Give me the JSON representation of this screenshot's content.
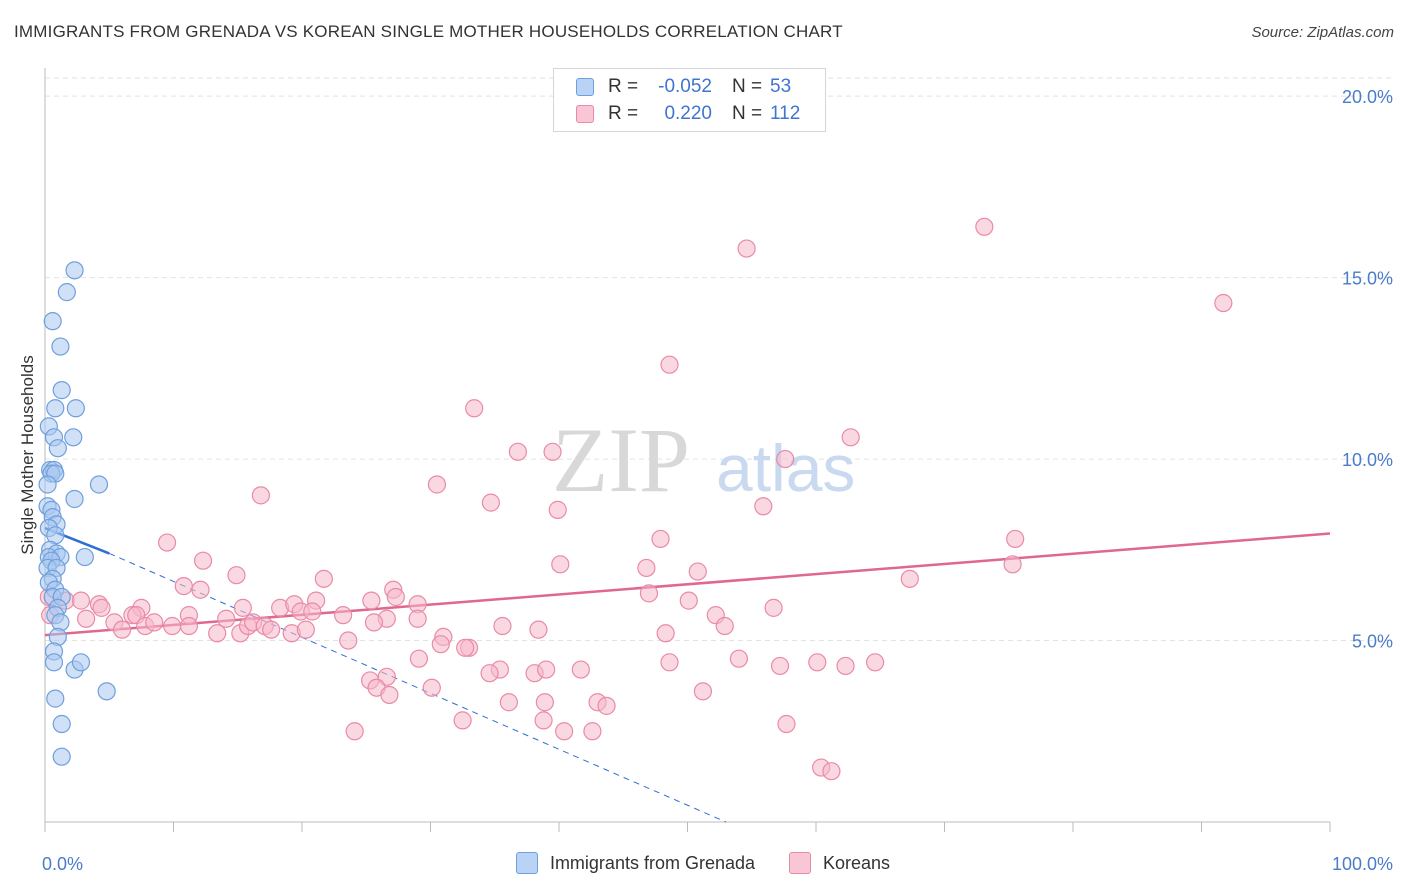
{
  "header": {
    "title": "IMMIGRANTS FROM GRENADA VS KOREAN SINGLE MOTHER HOUSEHOLDS CORRELATION CHART",
    "source": "Source: ZipAtlas.com"
  },
  "watermark": {
    "zip": "ZIP",
    "atlas": "atlas"
  },
  "legend": {
    "rows": [
      {
        "r_label": "R =",
        "r_value": "-0.052",
        "n_label": "N =",
        "n_value": "53"
      },
      {
        "r_label": "R =",
        "r_value": "0.220",
        "n_label": "N =",
        "n_value": "112"
      }
    ]
  },
  "colors": {
    "blue_fill": "#a9c8f0",
    "blue_stroke": "#6f9fdc",
    "blue_line": "#2f6fd0",
    "pink_fill": "#f6b8cb",
    "pink_stroke": "#e98aa8",
    "pink_line": "#e0678f",
    "grid": "#e2e2e2",
    "tick_text": "#4a7cc9"
  },
  "chart_data": {
    "type": "scatter",
    "title": "IMMIGRANTS FROM GRENADA VS KOREAN SINGLE MOTHER HOUSEHOLDS CORRELATION CHART",
    "xlabel": "",
    "ylabel": "Single Mother Households",
    "xlim": [
      0,
      100
    ],
    "ylim": [
      0,
      20.5
    ],
    "x_tick_labels": [
      "0.0%",
      "100.0%"
    ],
    "y_ticks": [
      5,
      10,
      15,
      20
    ],
    "y_tick_labels": [
      "5.0%",
      "10.0%",
      "15.0%",
      "20.0%"
    ],
    "grid": true,
    "series": [
      {
        "name": "Immigrants from Grenada",
        "color": "blue",
        "points": [
          [
            2.3,
            15.2
          ],
          [
            1.7,
            14.6
          ],
          [
            0.6,
            13.8
          ],
          [
            1.2,
            13.1
          ],
          [
            1.3,
            11.9
          ],
          [
            0.8,
            11.4
          ],
          [
            2.4,
            11.4
          ],
          [
            0.3,
            10.9
          ],
          [
            0.7,
            10.6
          ],
          [
            2.2,
            10.6
          ],
          [
            1.0,
            10.3
          ],
          [
            0.4,
            9.7
          ],
          [
            0.7,
            9.7
          ],
          [
            0.5,
            9.6
          ],
          [
            0.8,
            9.6
          ],
          [
            0.2,
            9.3
          ],
          [
            4.2,
            9.3
          ],
          [
            2.3,
            8.9
          ],
          [
            0.2,
            8.7
          ],
          [
            0.5,
            8.6
          ],
          [
            0.6,
            8.4
          ],
          [
            0.9,
            8.2
          ],
          [
            0.3,
            8.1
          ],
          [
            0.8,
            7.9
          ],
          [
            0.4,
            7.5
          ],
          [
            0.9,
            7.4
          ],
          [
            0.3,
            7.3
          ],
          [
            1.2,
            7.3
          ],
          [
            3.1,
            7.3
          ],
          [
            0.5,
            7.2
          ],
          [
            0.2,
            7.0
          ],
          [
            0.9,
            7.0
          ],
          [
            0.6,
            6.7
          ],
          [
            0.3,
            6.6
          ],
          [
            0.8,
            6.4
          ],
          [
            0.6,
            6.2
          ],
          [
            1.3,
            6.2
          ],
          [
            1.0,
            5.9
          ],
          [
            0.8,
            5.7
          ],
          [
            1.2,
            5.5
          ],
          [
            1.0,
            5.1
          ],
          [
            0.7,
            4.7
          ],
          [
            0.7,
            4.4
          ],
          [
            2.3,
            4.2
          ],
          [
            2.8,
            4.4
          ],
          [
            0.8,
            3.4
          ],
          [
            4.8,
            3.6
          ],
          [
            1.3,
            2.7
          ],
          [
            1.3,
            1.8
          ]
        ]
      },
      {
        "name": "Koreans",
        "color": "pink",
        "points": [
          [
            73.1,
            16.4
          ],
          [
            54.6,
            15.8
          ],
          [
            91.7,
            14.3
          ],
          [
            48.6,
            12.6
          ],
          [
            33.4,
            11.4
          ],
          [
            62.7,
            10.6
          ],
          [
            39.5,
            10.2
          ],
          [
            36.8,
            10.2
          ],
          [
            57.6,
            10.0
          ],
          [
            30.5,
            9.3
          ],
          [
            16.8,
            9.0
          ],
          [
            34.7,
            8.8
          ],
          [
            39.9,
            8.6
          ],
          [
            55.9,
            8.7
          ],
          [
            47.9,
            7.8
          ],
          [
            75.5,
            7.8
          ],
          [
            9.5,
            7.7
          ],
          [
            12.3,
            7.2
          ],
          [
            40.1,
            7.1
          ],
          [
            46.8,
            7.0
          ],
          [
            50.8,
            6.9
          ],
          [
            75.3,
            7.1
          ],
          [
            14.9,
            6.8
          ],
          [
            21.7,
            6.7
          ],
          [
            67.3,
            6.7
          ],
          [
            10.8,
            6.5
          ],
          [
            12.1,
            6.4
          ],
          [
            27.1,
            6.4
          ],
          [
            47.0,
            6.3
          ],
          [
            27.3,
            6.2
          ],
          [
            0.3,
            6.2
          ],
          [
            1.6,
            6.1
          ],
          [
            2.8,
            6.1
          ],
          [
            4.2,
            6.0
          ],
          [
            4.4,
            5.9
          ],
          [
            7.5,
            5.9
          ],
          [
            15.4,
            5.9
          ],
          [
            18.3,
            5.9
          ],
          [
            19.4,
            6.0
          ],
          [
            21.1,
            6.1
          ],
          [
            25.4,
            6.1
          ],
          [
            29.0,
            6.0
          ],
          [
            50.1,
            6.1
          ],
          [
            56.7,
            5.9
          ],
          [
            0.4,
            5.7
          ],
          [
            3.2,
            5.6
          ],
          [
            6.8,
            5.7
          ],
          [
            7.1,
            5.7
          ],
          [
            11.2,
            5.7
          ],
          [
            14.1,
            5.6
          ],
          [
            19.9,
            5.8
          ],
          [
            20.8,
            5.8
          ],
          [
            23.2,
            5.7
          ],
          [
            26.6,
            5.6
          ],
          [
            29.0,
            5.6
          ],
          [
            52.2,
            5.7
          ],
          [
            5.4,
            5.5
          ],
          [
            6.0,
            5.3
          ],
          [
            7.8,
            5.4
          ],
          [
            8.5,
            5.5
          ],
          [
            9.9,
            5.4
          ],
          [
            11.2,
            5.4
          ],
          [
            13.4,
            5.2
          ],
          [
            15.2,
            5.2
          ],
          [
            15.8,
            5.4
          ],
          [
            16.2,
            5.5
          ],
          [
            17.1,
            5.4
          ],
          [
            17.6,
            5.3
          ],
          [
            19.2,
            5.2
          ],
          [
            20.3,
            5.3
          ],
          [
            23.6,
            5.0
          ],
          [
            25.6,
            5.5
          ],
          [
            31.0,
            5.1
          ],
          [
            35.6,
            5.4
          ],
          [
            38.4,
            5.3
          ],
          [
            48.3,
            5.2
          ],
          [
            52.9,
            5.4
          ],
          [
            33.0,
            4.8
          ],
          [
            35.4,
            4.2
          ],
          [
            41.7,
            4.2
          ],
          [
            34.6,
            4.1
          ],
          [
            38.1,
            4.1
          ],
          [
            39.0,
            4.2
          ],
          [
            48.6,
            4.4
          ],
          [
            54.0,
            4.5
          ],
          [
            60.1,
            4.4
          ],
          [
            62.3,
            4.3
          ],
          [
            64.6,
            4.4
          ],
          [
            25.3,
            3.9
          ],
          [
            29.1,
            4.5
          ],
          [
            26.6,
            4.0
          ],
          [
            30.8,
            4.9
          ],
          [
            32.7,
            4.8
          ],
          [
            30.1,
            3.7
          ],
          [
            25.8,
            3.7
          ],
          [
            26.8,
            3.5
          ],
          [
            36.1,
            3.3
          ],
          [
            38.9,
            3.3
          ],
          [
            51.2,
            3.6
          ],
          [
            57.2,
            4.3
          ],
          [
            32.5,
            2.8
          ],
          [
            38.8,
            2.8
          ],
          [
            40.4,
            2.5
          ],
          [
            42.6,
            2.5
          ],
          [
            43.0,
            3.3
          ],
          [
            43.7,
            3.2
          ],
          [
            57.7,
            2.7
          ],
          [
            24.1,
            2.5
          ],
          [
            60.4,
            1.5
          ],
          [
            61.2,
            1.4
          ]
        ]
      }
    ],
    "trend_lines": [
      {
        "series": "Immigrants from Grenada",
        "style": "solid",
        "x": [
          0,
          5
        ],
        "y": [
          8.1,
          7.4
        ]
      },
      {
        "series": "Immigrants from Grenada",
        "style": "dashed",
        "x": [
          5,
          53
        ],
        "y": [
          7.4,
          0
        ]
      },
      {
        "series": "Koreans",
        "style": "solid",
        "x": [
          0,
          100
        ],
        "y": [
          5.15,
          7.95
        ]
      }
    ]
  },
  "bottom_legend": {
    "items": [
      {
        "label": "Immigrants from Grenada"
      },
      {
        "label": "Koreans"
      }
    ]
  }
}
